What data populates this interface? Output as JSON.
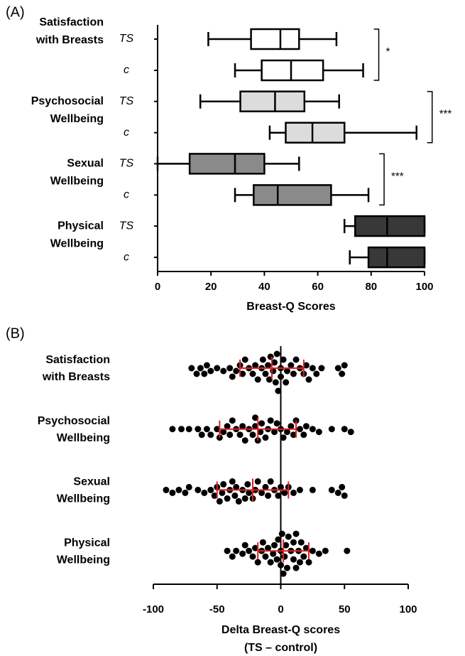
{
  "chart_data": [
    {
      "type": "box",
      "panel_label": "(A)",
      "xlabel": "Breast-Q Scores",
      "xlim": [
        0,
        100
      ],
      "xticks": [
        0,
        20,
        40,
        60,
        80,
        100
      ],
      "groups": [
        {
          "label": [
            "Satisfaction",
            "with Breasts"
          ],
          "significance": "*",
          "series": [
            {
              "name": "TS",
              "color": "#ffffff",
              "whislo": 19,
              "q1": 35,
              "med": 46,
              "q3": 53,
              "whishi": 67
            },
            {
              "name": "c",
              "color": "#ffffff",
              "whislo": 29,
              "q1": 39,
              "med": 50,
              "q3": 62,
              "whishi": 77
            }
          ]
        },
        {
          "label": [
            "Psychosocial",
            "Wellbeing"
          ],
          "significance": "***",
          "series": [
            {
              "name": "TS",
              "color": "#dcdcdc",
              "whislo": 16,
              "q1": 31,
              "med": 44,
              "q3": 55,
              "whishi": 68
            },
            {
              "name": "c",
              "color": "#dcdcdc",
              "whislo": 42,
              "q1": 48,
              "med": 58,
              "q3": 70,
              "whishi": 97
            }
          ]
        },
        {
          "label": [
            "Sexual",
            "Wellbeing"
          ],
          "significance": "***",
          "series": [
            {
              "name": "TS",
              "color": "#8a8a8a",
              "whislo": 0,
              "q1": 12,
              "med": 29,
              "q3": 40,
              "whishi": 53
            },
            {
              "name": "c",
              "color": "#8a8a8a",
              "whislo": 29,
              "q1": 36,
              "med": 45,
              "q3": 65,
              "whishi": 79
            }
          ]
        },
        {
          "label": [
            "Physical",
            "Wellbeing"
          ],
          "series": [
            {
              "name": "TS",
              "color": "#383838",
              "whislo": 70,
              "q1": 74,
              "med": 86,
              "q3": 100,
              "whishi": 100
            },
            {
              "name": "c",
              "color": "#383838",
              "whislo": 72,
              "q1": 79,
              "med": 86,
              "q3": 100,
              "whishi": 100
            }
          ]
        }
      ]
    },
    {
      "type": "swarm",
      "panel_label": "(B)",
      "xlabel": [
        "Delta Breast-Q scores",
        "(TS – control)"
      ],
      "xlim": [
        -100,
        100
      ],
      "xticks": [
        -100,
        -50,
        0,
        50,
        100
      ],
      "point_color": "#000000",
      "error_color": "#e02020",
      "groups": [
        {
          "label": [
            "Satisfaction",
            "with Breasts"
          ],
          "mean": -7,
          "sd": 25,
          "values": [
            -70,
            -66,
            -63,
            -60,
            -58,
            -55,
            -50,
            -45,
            -40,
            -38,
            -35,
            -32,
            -30,
            -28,
            -25,
            -22,
            -20,
            -18,
            -15,
            -14,
            -12,
            -10,
            -9,
            -8,
            -6,
            -5,
            -4,
            -3,
            -2,
            0,
            0,
            2,
            4,
            5,
            8,
            10,
            12,
            15,
            18,
            20,
            22,
            25,
            28,
            32,
            45,
            48,
            50
          ]
        },
        {
          "label": [
            "Psychosocial",
            "Wellbeing"
          ],
          "mean": -18,
          "sd": 30,
          "values": [
            -85,
            -78,
            -72,
            -65,
            -62,
            -58,
            -55,
            -50,
            -48,
            -45,
            -42,
            -40,
            -38,
            -35,
            -32,
            -30,
            -28,
            -25,
            -22,
            -20,
            -20,
            -18,
            -16,
            -15,
            -12,
            -10,
            -8,
            -5,
            -3,
            0,
            2,
            5,
            8,
            10,
            12,
            15,
            18,
            20,
            25,
            30,
            40,
            50,
            55
          ]
        },
        {
          "label": [
            "Sexual",
            "Wellbeing"
          ],
          "mean": -22,
          "sd": 28,
          "values": [
            -90,
            -85,
            -80,
            -75,
            -72,
            -65,
            -60,
            -55,
            -52,
            -50,
            -48,
            -46,
            -45,
            -42,
            -40,
            -38,
            -36,
            -35,
            -33,
            -30,
            -28,
            -26,
            -25,
            -22,
            -20,
            -18,
            -15,
            -12,
            -10,
            -8,
            -5,
            -2,
            0,
            3,
            6,
            10,
            15,
            25,
            40,
            45,
            48,
            50
          ]
        },
        {
          "label": [
            "Physical",
            "Wellbeing"
          ],
          "mean": 2,
          "sd": 20,
          "values": [
            -42,
            -38,
            -35,
            -30,
            -28,
            -25,
            -22,
            -20,
            -18,
            -15,
            -14,
            -12,
            -10,
            -8,
            -6,
            -5,
            -3,
            -2,
            0,
            0,
            1,
            2,
            3,
            4,
            5,
            6,
            8,
            10,
            10,
            12,
            12,
            14,
            15,
            16,
            18,
            20,
            22,
            25,
            30,
            35,
            52
          ]
        }
      ]
    }
  ]
}
